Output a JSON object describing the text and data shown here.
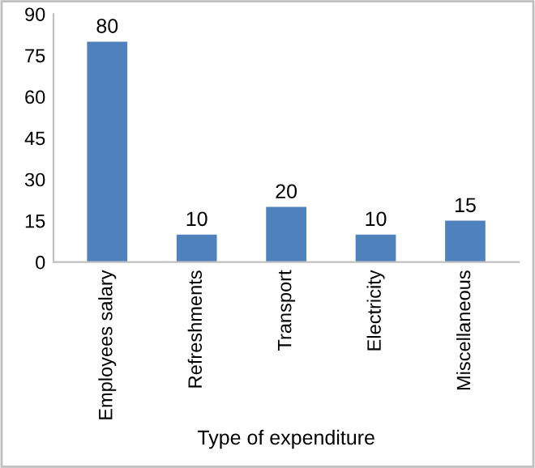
{
  "chart_data": {
    "type": "bar",
    "xlabel": "Type of expenditure",
    "categories": [
      "Employees salary",
      "Refreshments",
      "Transport",
      "Electricity",
      "Miscellaneous"
    ],
    "values": [
      80,
      10,
      20,
      10,
      15
    ],
    "color": "#4f81bd",
    "ylim": [
      0,
      90
    ],
    "yticks": [
      0,
      15,
      30,
      45,
      60,
      75,
      90
    ],
    "grid": false,
    "data_labels": true
  }
}
